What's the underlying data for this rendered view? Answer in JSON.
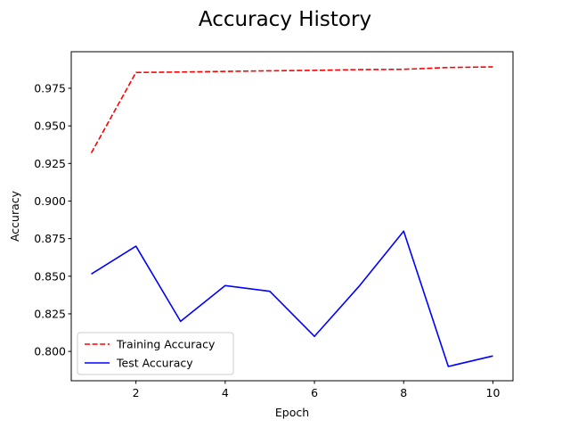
{
  "chart_data": {
    "type": "line",
    "title": "Accuracy History",
    "xlabel": "Epoch",
    "ylabel": "Accuracy",
    "x": [
      1,
      2,
      3,
      4,
      5,
      6,
      7,
      8,
      9,
      10
    ],
    "xlim": [
      0.55,
      10.45
    ],
    "ylim": [
      0.7805,
      0.9993
    ],
    "xticks": [
      2,
      4,
      6,
      8,
      10
    ],
    "xtick_labels": [
      "2",
      "4",
      "6",
      "8",
      "10"
    ],
    "yticks": [
      0.8,
      0.825,
      0.85,
      0.875,
      0.9,
      0.925,
      0.95,
      0.975
    ],
    "ytick_labels": [
      "0.800",
      "0.825",
      "0.850",
      "0.875",
      "0.900",
      "0.925",
      "0.950",
      "0.975"
    ],
    "grid": false,
    "legend_position": "lower-left",
    "series": [
      {
        "name": "Training Accuracy",
        "color": "#ff0000",
        "style": "dashed",
        "values": [
          0.932,
          0.9855,
          0.9858,
          0.9862,
          0.9866,
          0.9869,
          0.9874,
          0.9876,
          0.9888,
          0.9892
        ]
      },
      {
        "name": "Test Accuracy",
        "color": "#0000ff",
        "style": "solid",
        "values": [
          0.8515,
          0.87,
          0.82,
          0.8438,
          0.84,
          0.81,
          0.8433,
          0.88,
          0.79,
          0.797
        ]
      }
    ]
  }
}
